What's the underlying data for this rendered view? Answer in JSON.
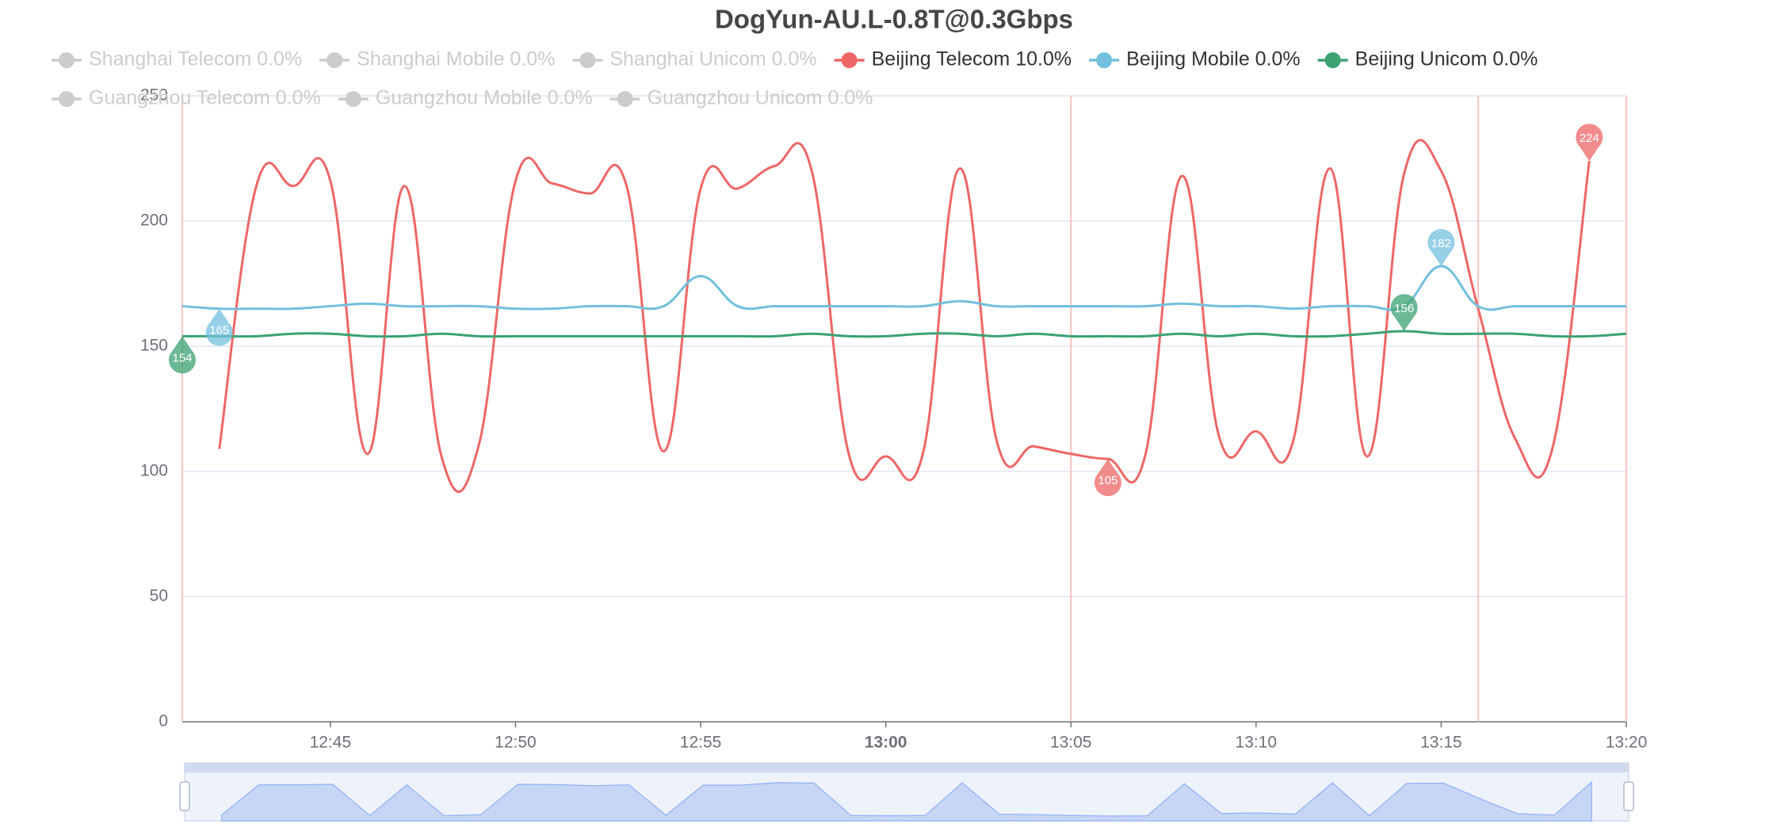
{
  "chart_data": {
    "type": "line",
    "title": "DogYun-AU.L-0.8T@0.3Gbps",
    "categories": [
      "12:41",
      "12:42",
      "12:43",
      "12:44",
      "12:45",
      "12:46",
      "12:47",
      "12:48",
      "12:49",
      "12:50",
      "12:51",
      "12:52",
      "12:53",
      "12:54",
      "12:55",
      "12:56",
      "12:57",
      "12:58",
      "12:59",
      "13:00",
      "13:01",
      "13:02",
      "13:03",
      "13:04",
      "13:05",
      "13:06",
      "13:07",
      "13:08",
      "13:09",
      "13:10",
      "13:11",
      "13:12",
      "13:13",
      "13:14",
      "13:15",
      "13:16",
      "13:17",
      "13:18",
      "13:19",
      "13:20"
    ],
    "xticks": [
      "12:45",
      "12:50",
      "12:55",
      "13:00",
      "13:05",
      "13:10",
      "13:15",
      "13:20"
    ],
    "ylim": [
      0,
      250
    ],
    "yticks": [
      0,
      50,
      100,
      150,
      200,
      250
    ],
    "grid": true,
    "smooth": true,
    "mark_lines": [
      "12:41",
      "13:05",
      "13:16",
      "13:20"
    ],
    "mark_line_color": "#f4b4b0",
    "series": [
      {
        "name": "Shanghai Telecom 0.0%",
        "visible": false,
        "color": "#cccccc"
      },
      {
        "name": "Shanghai Mobile 0.0%",
        "visible": false,
        "color": "#cccccc"
      },
      {
        "name": "Shanghai Unicom 0.0%",
        "visible": false,
        "color": "#cccccc"
      },
      {
        "name": "Beijing Telecom 10.0%",
        "visible": true,
        "color": "#ee6666",
        "values": [
          null,
          109,
          214,
          214,
          216,
          107,
          214,
          106,
          110,
          216,
          215,
          211,
          214,
          108,
          213,
          213,
          222,
          220,
          107,
          106,
          107,
          221,
          112,
          110,
          107,
          105,
          106,
          218,
          114,
          116,
          112,
          221,
          106,
          219,
          220,
          165,
          113,
          109,
          224,
          null
        ]
      },
      {
        "name": "Beijing Mobile 0.0%",
        "visible": true,
        "color": "#73c0de",
        "values": [
          166,
          165,
          165,
          165,
          166,
          167,
          166,
          166,
          166,
          165,
          165,
          166,
          166,
          166,
          178,
          166,
          166,
          166,
          166,
          166,
          166,
          168,
          166,
          166,
          166,
          166,
          166,
          167,
          166,
          166,
          165,
          166,
          166,
          166,
          182,
          166,
          166,
          166,
          166,
          166
        ]
      },
      {
        "name": "Beijing Unicom 0.0%",
        "visible": true,
        "color": "#3ba272",
        "values": [
          154,
          154,
          154,
          155,
          155,
          154,
          154,
          155,
          154,
          154,
          154,
          154,
          154,
          154,
          154,
          154,
          154,
          155,
          154,
          154,
          155,
          155,
          154,
          155,
          154,
          154,
          154,
          155,
          154,
          155,
          154,
          154,
          155,
          156,
          155,
          155,
          155,
          154,
          154,
          155
        ]
      },
      {
        "name": "Guangzhou Telecom 0.0%",
        "visible": false,
        "color": "#cccccc"
      },
      {
        "name": "Guangzhou Mobile 0.0%",
        "visible": false,
        "color": "#cccccc"
      },
      {
        "name": "Guangzhou Unicom 0.0%",
        "visible": false,
        "color": "#cccccc"
      }
    ]
  }
}
